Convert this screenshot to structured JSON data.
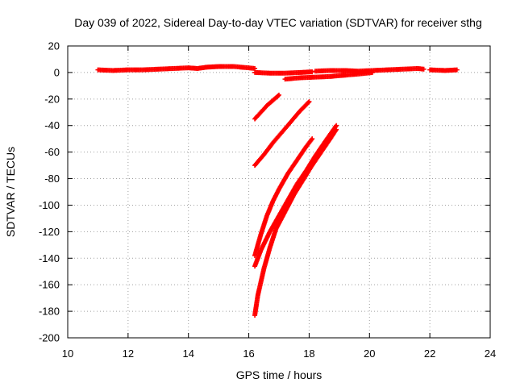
{
  "chart_data": {
    "type": "scatter",
    "title": "Day 039 of 2022, Sidereal Day-to-day VTEC variation (SDTVAR) for receiver sthg",
    "xlabel": "GPS time / hours",
    "ylabel": "SDTVAR / TECUs",
    "xlim": [
      10,
      24
    ],
    "ylim": [
      -200,
      20
    ],
    "xticks": [
      10,
      12,
      14,
      16,
      18,
      20,
      22,
      24
    ],
    "yticks": [
      20,
      0,
      -20,
      -40,
      -60,
      -80,
      -100,
      -120,
      -140,
      -160,
      -180,
      -200
    ],
    "grid": true,
    "marker": "plus",
    "color": "#ff0000",
    "series": [
      {
        "points": [
          [
            11.0,
            2
          ],
          [
            11.5,
            1.5
          ],
          [
            12.0,
            2
          ],
          [
            12.5,
            2
          ],
          [
            13.0,
            2.5
          ],
          [
            13.5,
            3
          ],
          [
            14.0,
            3.5
          ],
          [
            14.3,
            3
          ],
          [
            14.6,
            4
          ],
          [
            15.0,
            4.5
          ],
          [
            15.5,
            4.5
          ],
          [
            16.0,
            3.5
          ],
          [
            16.2,
            3
          ]
        ]
      },
      {
        "points": [
          [
            16.2,
            0
          ],
          [
            16.7,
            -0.5
          ],
          [
            17.2,
            -0.5
          ],
          [
            17.7,
            0
          ],
          [
            18.1,
            0.5
          ]
        ]
      },
      {
        "points": [
          [
            17.2,
            -5
          ],
          [
            17.7,
            -4
          ],
          [
            18.2,
            -3.5
          ],
          [
            18.7,
            -3
          ],
          [
            19.2,
            -2
          ],
          [
            19.7,
            -1
          ],
          [
            20.1,
            0
          ]
        ]
      },
      {
        "points": [
          [
            18.2,
            1
          ],
          [
            18.7,
            1.5
          ],
          [
            19.2,
            1.5
          ],
          [
            19.6,
            1
          ],
          [
            20.1,
            1.5
          ],
          [
            20.6,
            2
          ],
          [
            21.1,
            2.5
          ],
          [
            21.6,
            3
          ],
          [
            21.8,
            2.5
          ]
        ]
      },
      {
        "points": [
          [
            22.0,
            2
          ],
          [
            22.5,
            1.5
          ],
          [
            22.9,
            2
          ]
        ]
      },
      {
        "points": [
          [
            16.2,
            -35
          ],
          [
            16.4,
            -30
          ],
          [
            16.6,
            -25
          ],
          [
            16.8,
            -21
          ],
          [
            17.0,
            -17
          ]
        ]
      },
      {
        "points": [
          [
            16.2,
            -70
          ],
          [
            16.5,
            -62
          ],
          [
            16.8,
            -53
          ],
          [
            17.1,
            -45
          ],
          [
            17.4,
            -37
          ],
          [
            17.7,
            -29
          ],
          [
            18.0,
            -22
          ]
        ]
      },
      {
        "points": [
          [
            16.2,
            -138
          ],
          [
            16.4,
            -122
          ],
          [
            16.6,
            -108
          ],
          [
            16.8,
            -97
          ],
          [
            17.0,
            -88
          ],
          [
            17.3,
            -76
          ],
          [
            17.6,
            -66
          ],
          [
            17.9,
            -56
          ],
          [
            18.1,
            -50
          ]
        ]
      },
      {
        "points": [
          [
            16.2,
            -146
          ],
          [
            16.4,
            -134
          ],
          [
            16.7,
            -120
          ],
          [
            17.0,
            -108
          ],
          [
            17.3,
            -96
          ],
          [
            17.6,
            -84
          ],
          [
            17.9,
            -74
          ],
          [
            18.2,
            -63
          ],
          [
            18.5,
            -53
          ],
          [
            18.9,
            -40
          ]
        ]
      },
      {
        "points": [
          [
            16.2,
            -183
          ],
          [
            16.3,
            -168
          ],
          [
            16.5,
            -148
          ],
          [
            16.7,
            -132
          ],
          [
            16.9,
            -118
          ],
          [
            17.2,
            -105
          ],
          [
            17.5,
            -92
          ],
          [
            17.8,
            -81
          ],
          [
            18.1,
            -70
          ],
          [
            18.4,
            -60
          ],
          [
            18.7,
            -50
          ],
          [
            18.9,
            -43
          ]
        ]
      }
    ]
  }
}
